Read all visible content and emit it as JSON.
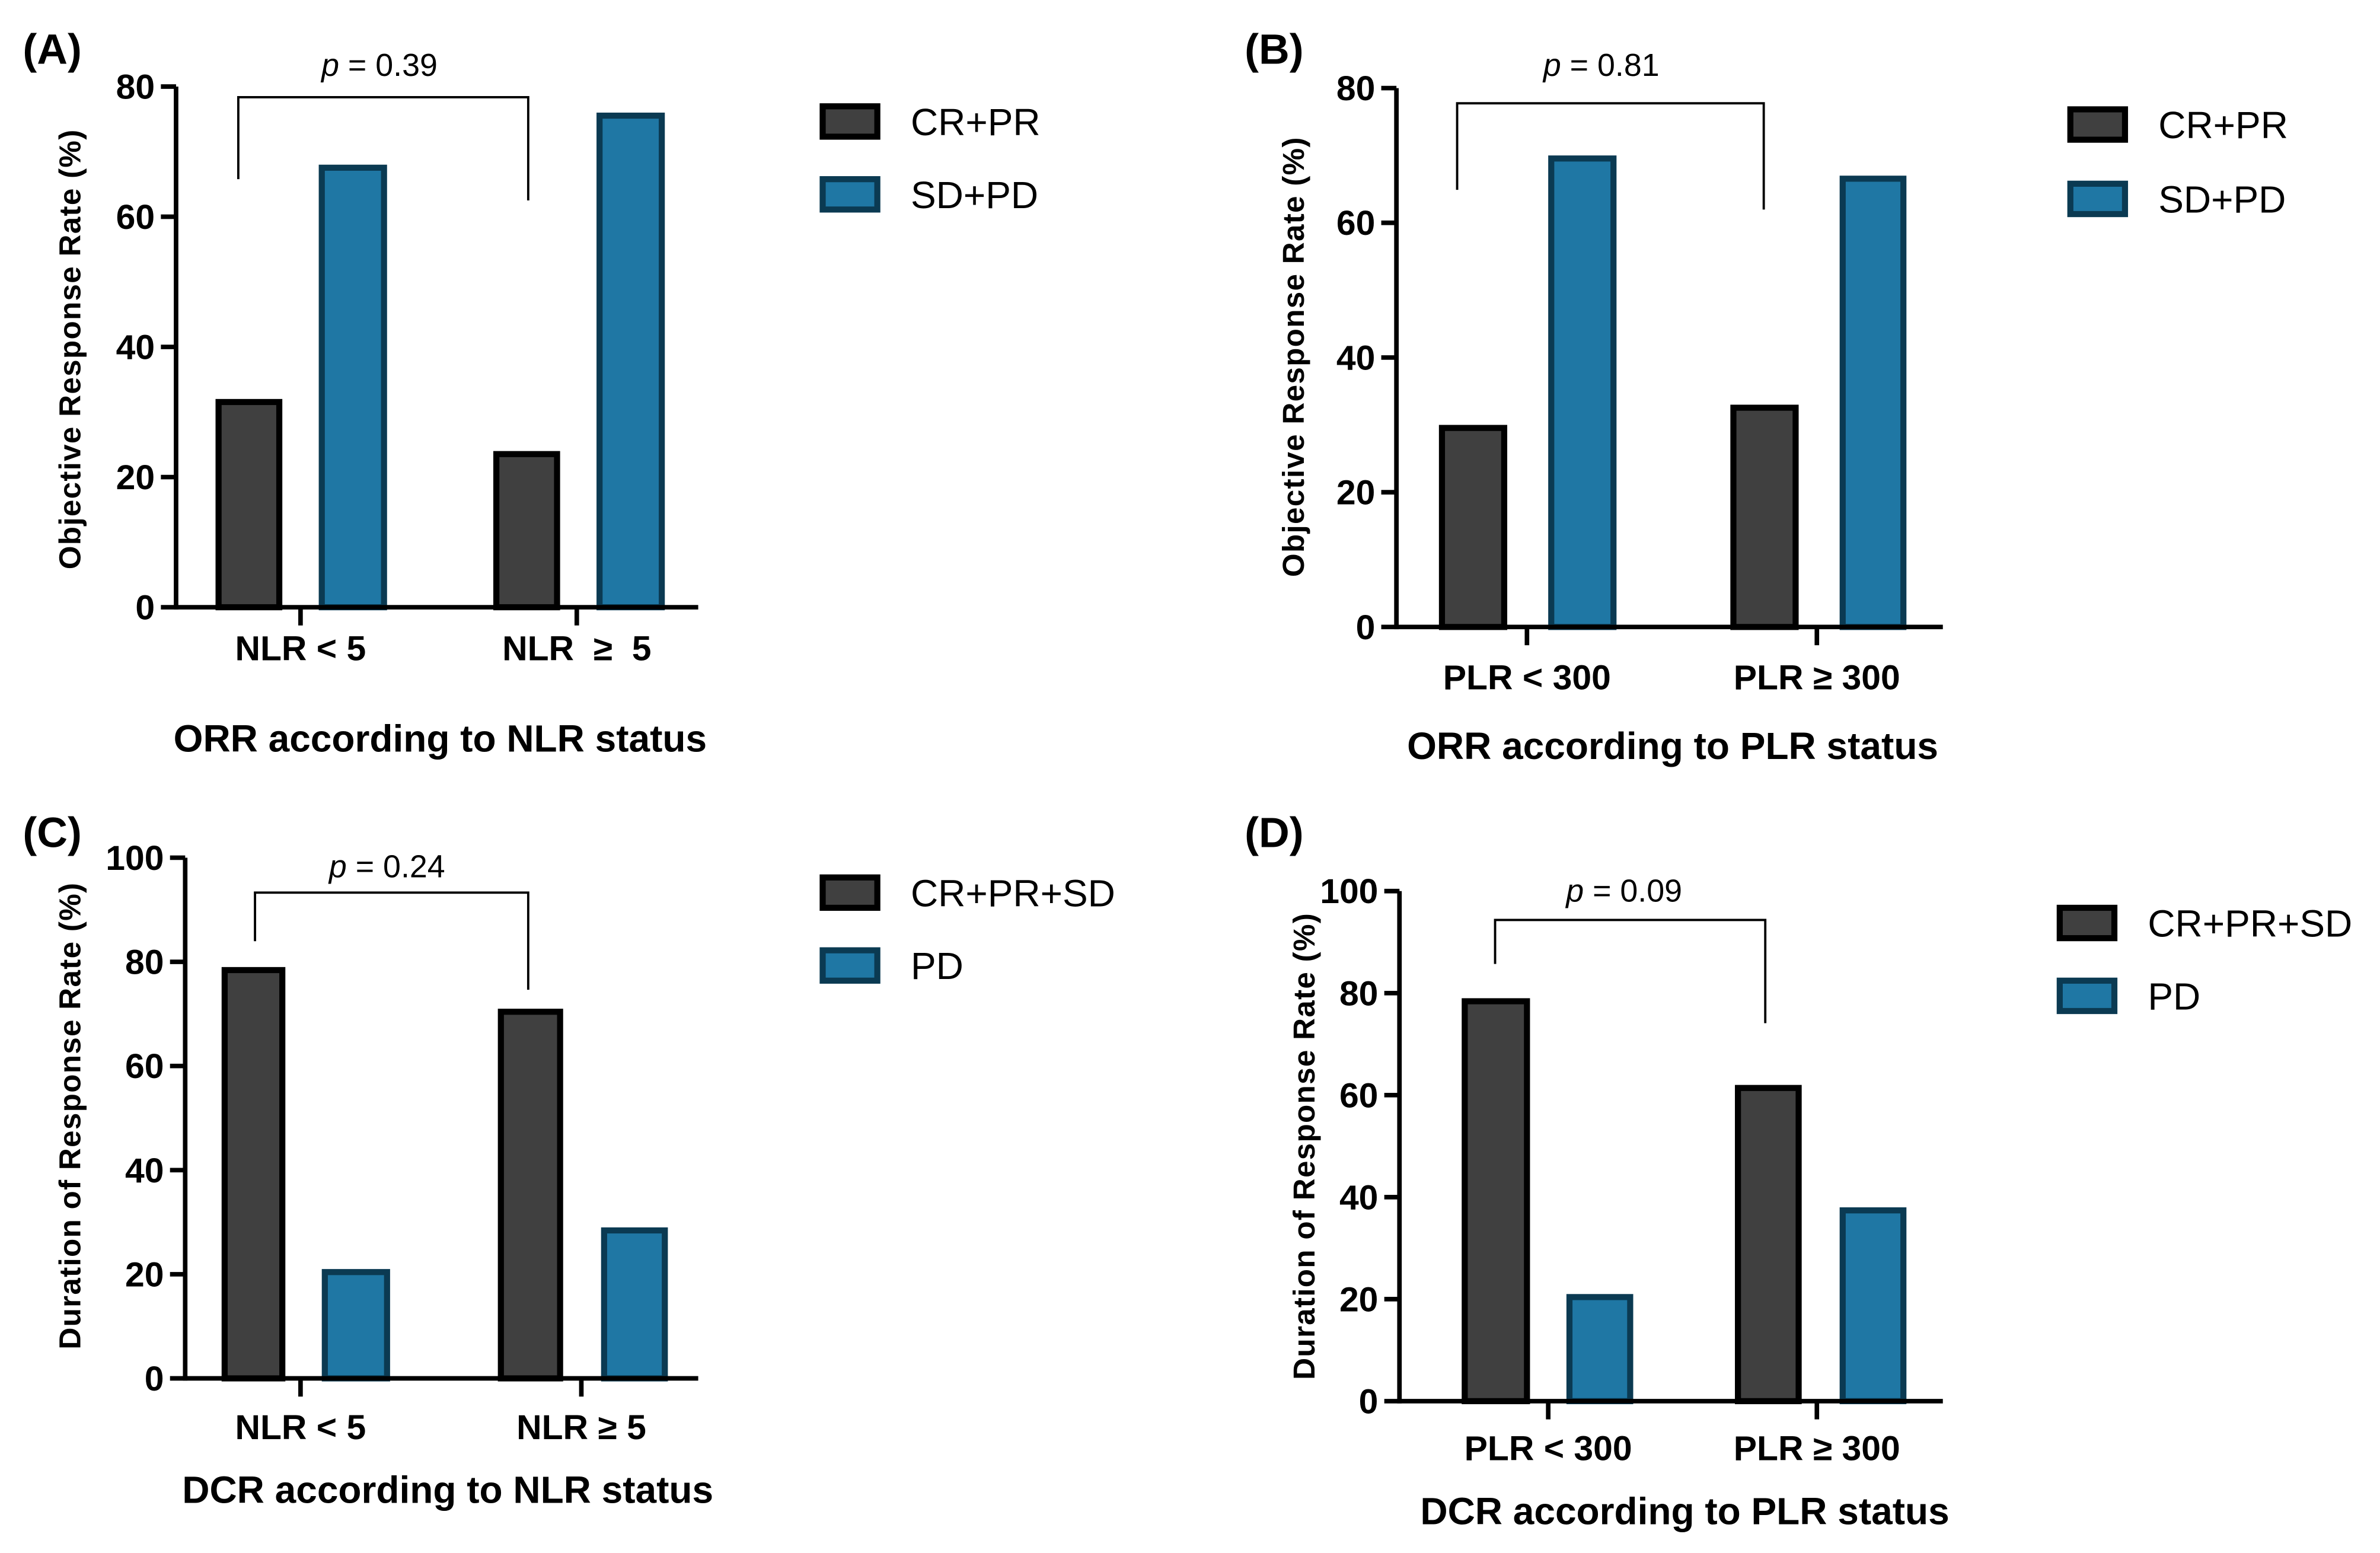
{
  "colors": {
    "gray": "#404040",
    "gray_edge": "#000000",
    "blue": "#1f77a4",
    "blue_edge": "#0b3a52",
    "axis": "#000000"
  },
  "chart_data": [
    {
      "type": "bar",
      "panel": "(A)",
      "title": "ORR according to NLR status",
      "ylabel": "Objective Response Rate (%)",
      "ylim": [
        0,
        80
      ],
      "yticks": [
        0,
        20,
        40,
        60,
        80
      ],
      "categories": [
        "NLR < 5",
        "NLR  ≥  5"
      ],
      "series": [
        {
          "name": "CR+PR",
          "values": [
            32,
            24
          ]
        },
        {
          "name": "SD+PD",
          "values": [
            68,
            76
          ]
        }
      ],
      "annotation": {
        "p_label": "p",
        "p_value": " = 0.39"
      },
      "legend": "right"
    },
    {
      "type": "bar",
      "panel": "(B)",
      "title": "ORR according to PLR status",
      "ylabel": "Objective Response Rate (%)",
      "ylim": [
        0,
        80
      ],
      "yticks": [
        0,
        20,
        40,
        60,
        80
      ],
      "categories": [
        "PLR < 300",
        "PLR ≥ 300"
      ],
      "series": [
        {
          "name": "CR+PR",
          "values": [
            30,
            33
          ]
        },
        {
          "name": "SD+PD",
          "values": [
            70,
            67
          ]
        }
      ],
      "annotation": {
        "p_label": "p",
        "p_value": " = 0.81"
      },
      "legend": "right"
    },
    {
      "type": "bar",
      "panel": "(C)",
      "title": "DCR according to NLR status",
      "ylabel": "Duration of Response Rate (%)",
      "ylim": [
        0,
        100
      ],
      "yticks": [
        0,
        20,
        40,
        60,
        80,
        100
      ],
      "categories": [
        "NLR < 5",
        "NLR ≥ 5"
      ],
      "series": [
        {
          "name": "CR+PR+SD",
          "values": [
            79,
            71
          ]
        },
        {
          "name": "PD",
          "values": [
            21,
            29
          ]
        }
      ],
      "annotation": {
        "p_label": "p",
        "p_value": " = 0.24"
      },
      "legend": "right"
    },
    {
      "type": "bar",
      "panel": "(D)",
      "title": "DCR according to PLR status",
      "ylabel": "Duration of Response Rate (%)",
      "ylim": [
        0,
        100
      ],
      "yticks": [
        0,
        20,
        40,
        60,
        80,
        100
      ],
      "categories": [
        "PLR < 300",
        "PLR ≥ 300"
      ],
      "series": [
        {
          "name": "CR+PR+SD",
          "values": [
            79,
            62
          ]
        },
        {
          "name": "PD",
          "values": [
            21,
            38
          ]
        }
      ],
      "annotation": {
        "p_label": "p",
        "p_value": " = 0.09"
      },
      "legend": "right"
    }
  ]
}
